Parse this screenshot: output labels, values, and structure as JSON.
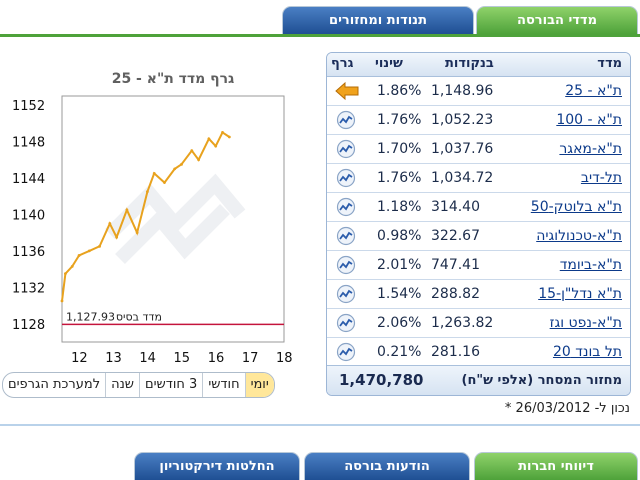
{
  "tabs_top": {
    "indices": "מדדי הבורסה",
    "movements": "תנודות ומחזורים"
  },
  "table": {
    "headers": {
      "index": "מדד",
      "points": "בנקודות",
      "change": "שינוי",
      "graph": "גרף"
    },
    "rows": [
      {
        "name": "ת\"א - 25",
        "value": "1,148.96",
        "change": "1.86%",
        "icon": "arrow-left-icon"
      },
      {
        "name": "ת\"א - 100",
        "value": "1,052.23",
        "change": "1.76%",
        "icon": "chart-icon"
      },
      {
        "name": "ת\"א-מאגר",
        "value": "1,037.76",
        "change": "1.70%",
        "icon": "chart-icon"
      },
      {
        "name": "תל-דיב",
        "value": "1,034.72",
        "change": "1.76%",
        "icon": "chart-icon"
      },
      {
        "name": "ת\"א בלוטק-50",
        "value": "314.40",
        "change": "1.18%",
        "icon": "chart-icon"
      },
      {
        "name": "ת\"א-טכנולוגיה",
        "value": "322.67",
        "change": "0.98%",
        "icon": "chart-icon"
      },
      {
        "name": "ת\"א-ביומד",
        "value": "747.41",
        "change": "2.01%",
        "icon": "chart-icon"
      },
      {
        "name": "ת\"א נדל\"ן-15",
        "value": "288.82",
        "change": "1.54%",
        "icon": "chart-icon"
      },
      {
        "name": "ת\"א-נפט וגז",
        "value": "1,263.82",
        "change": "2.06%",
        "icon": "chart-icon"
      },
      {
        "name": "תל בונד 20",
        "value": "281.16",
        "change": "0.21%",
        "icon": "chart-icon"
      }
    ],
    "footer_label": "מחזור המסחר (אלפי ש\"ח)",
    "footer_value": "1,470,780"
  },
  "chart_title": "גרף מדד ת\"א - 25",
  "chart_data": {
    "type": "line",
    "title": "גרף מדד ת\"א - 25",
    "x_ticks": [
      "12",
      "13",
      "14",
      "15",
      "16",
      "17",
      "18"
    ],
    "y_ticks": [
      "1128",
      "1132",
      "1136",
      "1140",
      "1144",
      "1148",
      "1152"
    ],
    "ylim": [
      1126,
      1153
    ],
    "xlim": [
      11.5,
      18
    ],
    "series": [
      {
        "x": [
          11.5,
          11.6,
          11.8,
          12.0,
          12.3,
          12.6,
          12.9,
          13.1,
          13.4,
          13.7,
          14.0,
          14.2,
          14.5,
          14.8,
          15.0,
          15.3,
          15.5,
          15.8,
          16.0,
          16.2,
          16.4
        ],
        "y": [
          1130.5,
          1133.5,
          1134.3,
          1135.5,
          1136.0,
          1136.5,
          1139.0,
          1137.5,
          1140.5,
          1138.0,
          1142.5,
          1144.5,
          1143.5,
          1145.0,
          1145.5,
          1147.0,
          1146.0,
          1148.3,
          1147.5,
          1149.0,
          1148.5
        ]
      }
    ],
    "base_line": {
      "label": "מדד בסיס",
      "value": "1,127.93",
      "y": 1127.93
    },
    "line_color": "#e8a21e",
    "base_color": "#c4143c"
  },
  "range_buttons": [
    "יומי",
    "חודשי",
    "3 חודשים",
    "שנה",
    "למערכת הגרפים"
  ],
  "active_range": "יומי",
  "updated_note": "* נכון ל- 26/03/2012",
  "tabs_bottom": {
    "reports": "דיווחי חברות",
    "announcements": "הודעות בורסה",
    "decisions": "החלטות דירקטוריון"
  }
}
